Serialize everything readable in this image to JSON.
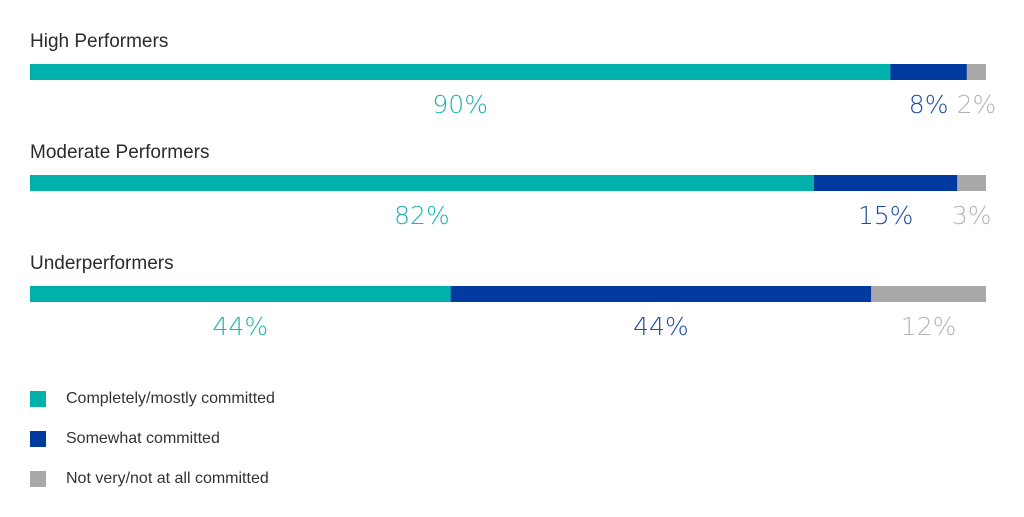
{
  "chart_data": {
    "type": "bar",
    "orientation": "horizontal",
    "stacked": true,
    "categories": [
      "High Performers",
      "Moderate Performers",
      "Underperformers"
    ],
    "series": [
      {
        "name": "Completely/mostly committed",
        "color": "#00b0aa",
        "values": [
          90,
          82,
          44
        ],
        "labels": [
          "90%",
          "82%",
          "44%"
        ]
      },
      {
        "name": "Somewhat committed",
        "color": "#0039a0",
        "values": [
          8,
          15,
          44
        ],
        "labels": [
          "8%",
          "15%",
          "44%"
        ]
      },
      {
        "name": "Not very/not at all committed",
        "color": "#a9a9a9",
        "values": [
          2,
          3,
          12
        ],
        "labels": [
          "2%",
          "3%",
          "12%"
        ]
      }
    ],
    "xlim": [
      0,
      100
    ],
    "grid": false,
    "legend_position": "bottom-left"
  }
}
